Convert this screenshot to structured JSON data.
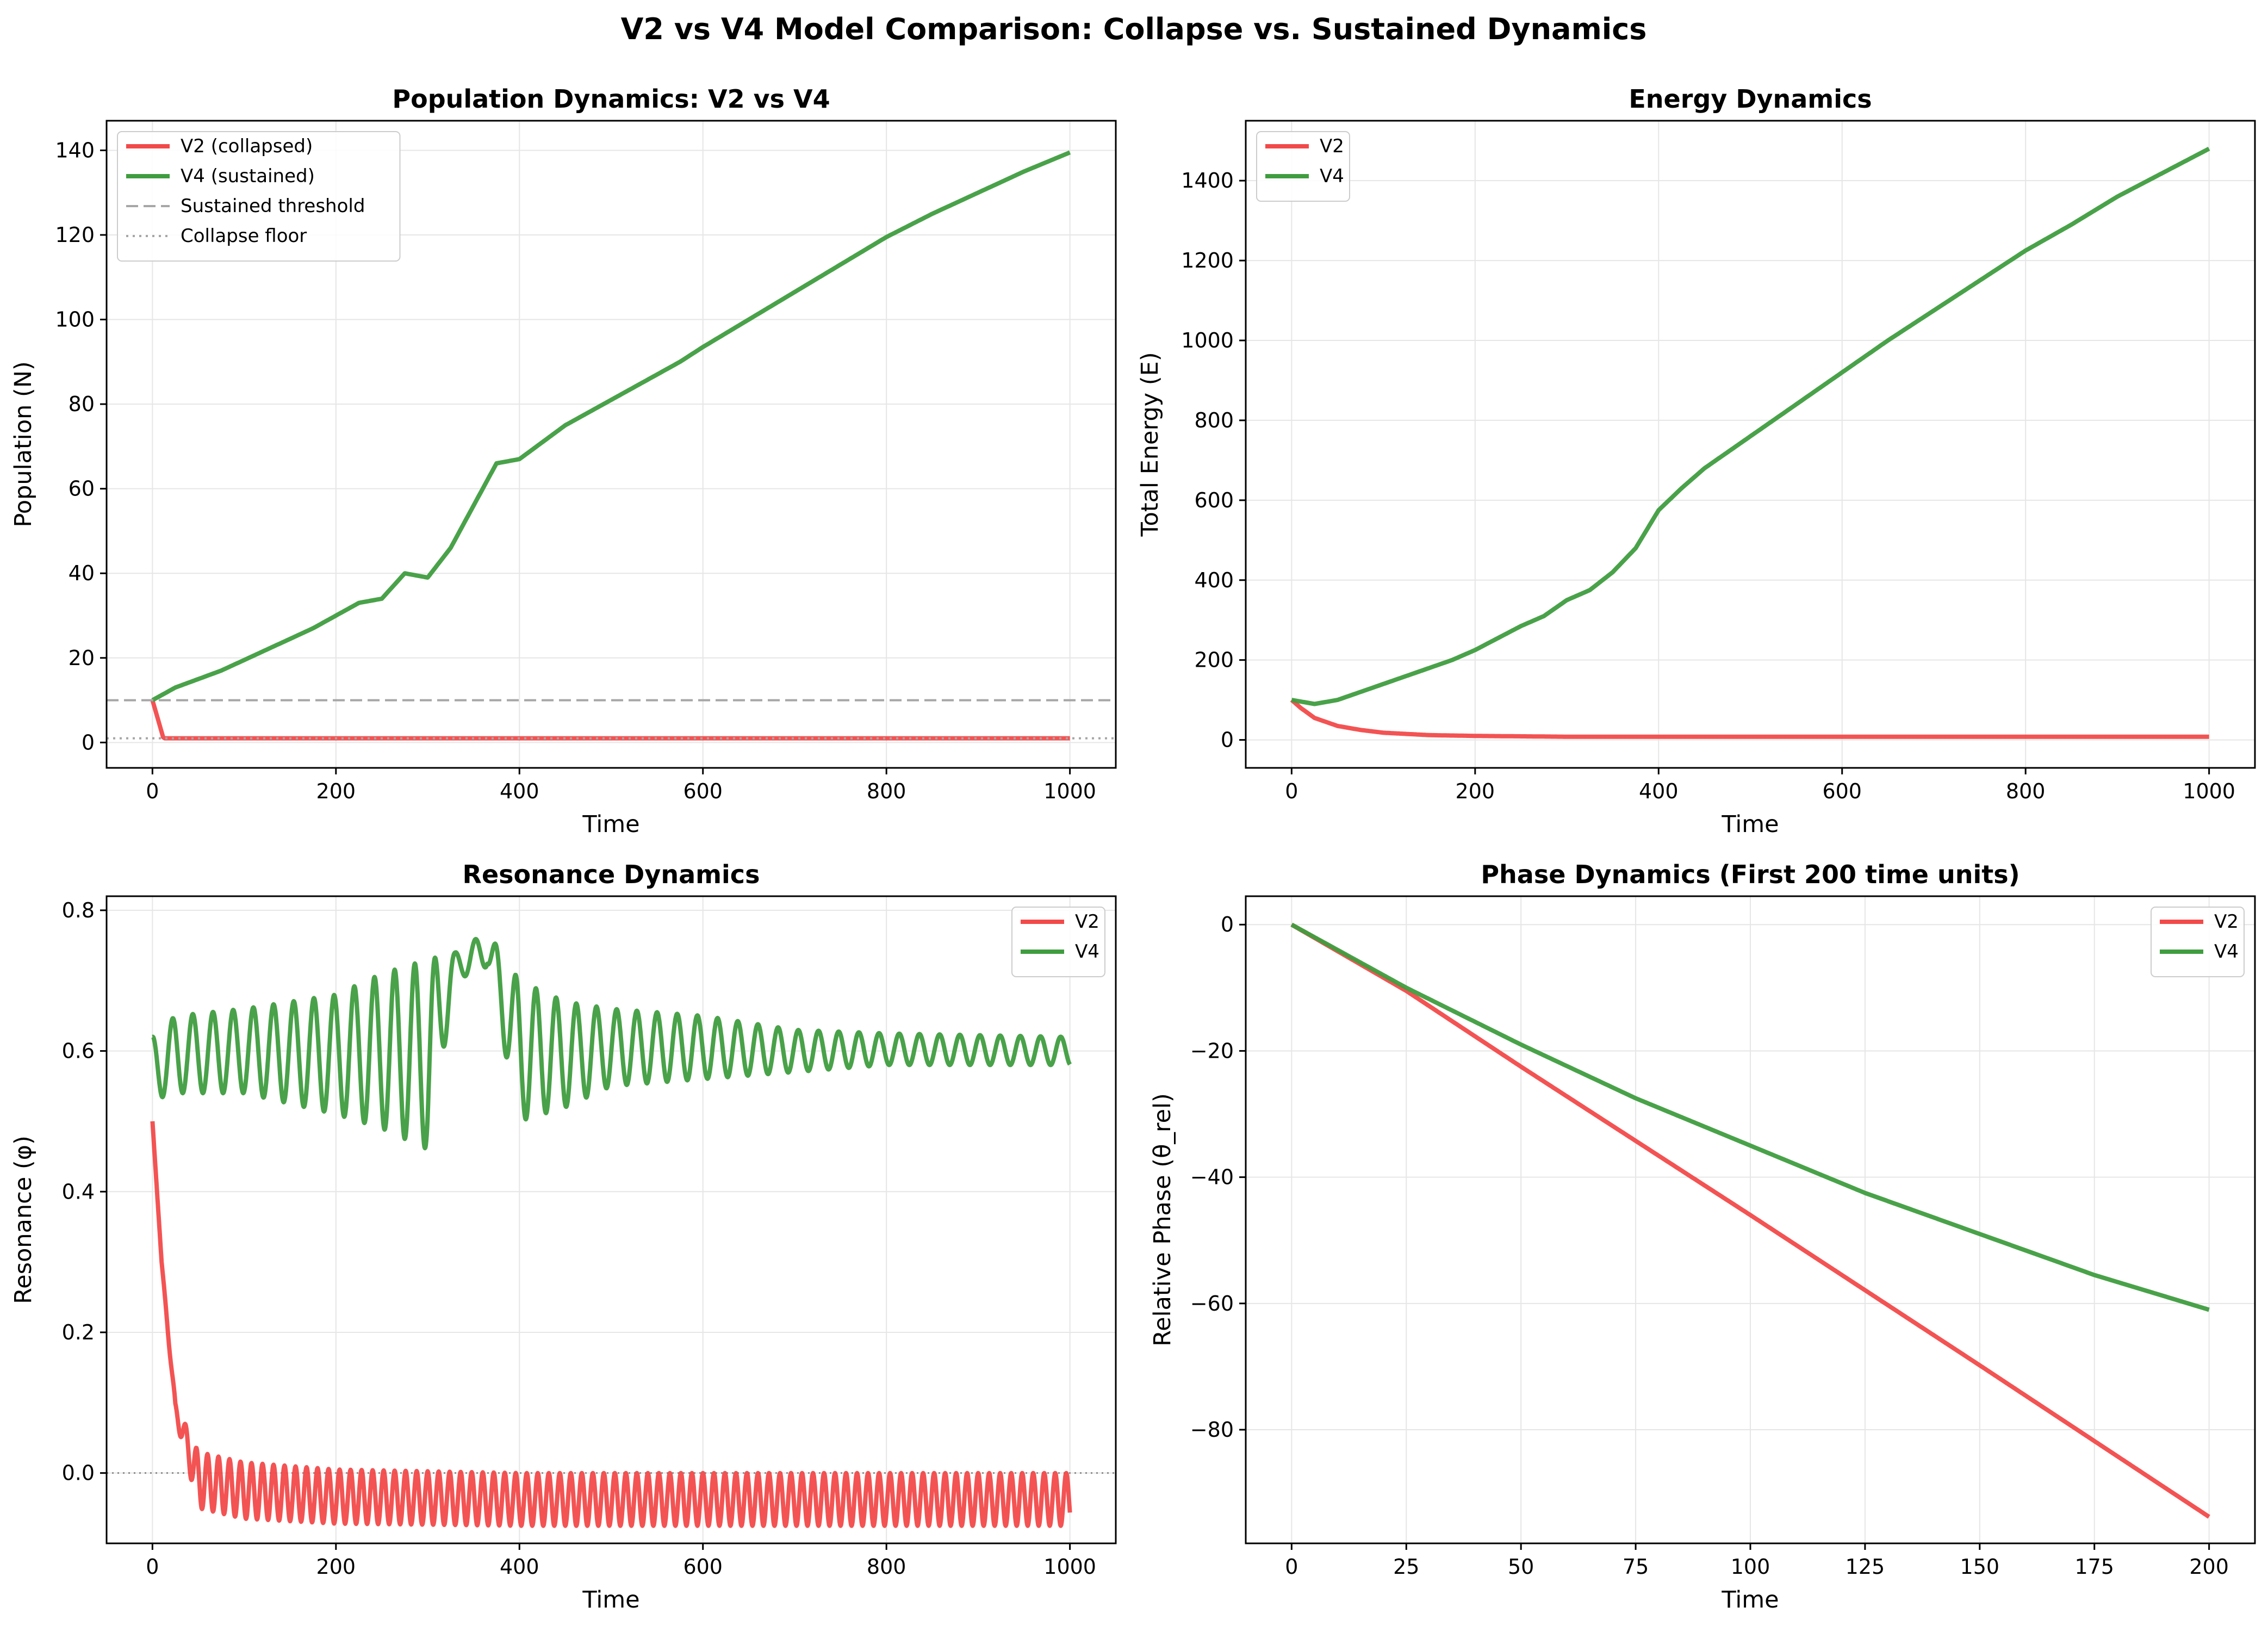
{
  "figure": {
    "title": "V2 vs V4 Model Comparison: Collapse vs. Sustained Dynamics"
  },
  "colors": {
    "v2": "#f24a4a",
    "v4": "#3f9d3f",
    "ref_line": "#a6a6a6",
    "grid": "#e6e6e6"
  },
  "chart_data": [
    {
      "type": "line",
      "title": "Population Dynamics: V2 vs V4",
      "xlabel": "Time",
      "ylabel": "Population (N)",
      "xlim": [
        -50,
        1050
      ],
      "ylim": [
        -6,
        147
      ],
      "xticks": [
        0,
        200,
        400,
        600,
        800,
        1000
      ],
      "yticks": [
        0,
        20,
        40,
        60,
        80,
        100,
        120,
        140
      ],
      "grid": true,
      "legend": "top-left",
      "series": [
        {
          "name": "V2 (collapsed)",
          "key": "v2",
          "x": [
            0,
            12,
            1000
          ],
          "y": [
            10,
            1,
            1
          ]
        },
        {
          "name": "V4 (sustained)",
          "key": "v4",
          "x": [
            0,
            25,
            50,
            75,
            100,
            125,
            150,
            175,
            200,
            225,
            250,
            275,
            300,
            325,
            350,
            375,
            400,
            425,
            450,
            475,
            500,
            525,
            550,
            575,
            600,
            650,
            700,
            750,
            800,
            850,
            900,
            950,
            1000
          ],
          "y": [
            10,
            13,
            15,
            17,
            19.5,
            22,
            24.5,
            27,
            30,
            33,
            34,
            40,
            39,
            46,
            56,
            66,
            67,
            71,
            75,
            78,
            81,
            84,
            87,
            90,
            93.5,
            100,
            106.5,
            113,
            119.5,
            125,
            130,
            135,
            139.5
          ]
        },
        {
          "name": "Sustained threshold",
          "key": "threshold",
          "style": "dashed",
          "y_const": 10
        },
        {
          "name": "Collapse floor",
          "key": "floor",
          "style": "dotted",
          "y_const": 1
        }
      ]
    },
    {
      "type": "line",
      "title": "Energy Dynamics",
      "xlabel": "Time",
      "ylabel": "Total Energy (E)",
      "xlim": [
        -50,
        1050
      ],
      "ylim": [
        -70,
        1550
      ],
      "xticks": [
        0,
        200,
        400,
        600,
        800,
        1000
      ],
      "yticks": [
        0,
        200,
        400,
        600,
        800,
        1000,
        1200,
        1400
      ],
      "grid": true,
      "legend": "top-left",
      "series": [
        {
          "name": "V2",
          "key": "v2",
          "x": [
            0,
            10,
            25,
            50,
            75,
            100,
            150,
            200,
            300,
            400,
            600,
            800,
            1000
          ],
          "y": [
            100,
            80,
            55,
            35,
            25,
            18,
            12,
            10,
            8,
            8,
            8,
            8,
            8
          ]
        },
        {
          "name": "V4",
          "key": "v4",
          "x": [
            0,
            25,
            50,
            75,
            100,
            125,
            150,
            175,
            200,
            225,
            250,
            275,
            300,
            325,
            350,
            375,
            400,
            425,
            450,
            475,
            500,
            550,
            600,
            650,
            700,
            750,
            800,
            850,
            900,
            950,
            1000
          ],
          "y": [
            100,
            90,
            100,
            120,
            140,
            160,
            180,
            200,
            225,
            255,
            285,
            310,
            350,
            375,
            420,
            480,
            575,
            630,
            680,
            720,
            760,
            840,
            920,
            1000,
            1075,
            1150,
            1225,
            1290,
            1360,
            1420,
            1480
          ]
        }
      ]
    },
    {
      "type": "line",
      "title": "Resonance Dynamics",
      "xlabel": "Time",
      "ylabel": "Resonance (φ)",
      "xlim": [
        -50,
        1050
      ],
      "ylim": [
        -0.1,
        0.82
      ],
      "xticks": [
        0,
        200,
        400,
        600,
        800,
        1000
      ],
      "yticks": [
        0.0,
        0.2,
        0.4,
        0.6,
        0.8
      ],
      "grid": true,
      "legend": "top-right",
      "reference_line": 0.0,
      "series": [
        {
          "name": "V2",
          "key": "v2",
          "envelope": {
            "x": [
              0,
              10,
              25,
              50,
              100,
              200,
              400,
              600,
              800,
              1000
            ],
            "upper": [
              0.5,
              0.3,
              0.1,
              0.03,
              0.015,
              0.005,
              0.0,
              0.0,
              0.0,
              0.0
            ],
            "lower": [
              0.5,
              0.3,
              0.08,
              -0.05,
              -0.065,
              -0.072,
              -0.075,
              -0.075,
              -0.075,
              -0.075
            ],
            "period": 12
          }
        },
        {
          "name": "V4",
          "key": "v4",
          "envelope": {
            "x": [
              0,
              25,
              100,
              200,
              250,
              300,
              330,
              365,
              400,
              450,
              500,
              600,
              700,
              800,
              1000
            ],
            "upper": [
              0.62,
              0.65,
              0.66,
              0.68,
              0.71,
              0.73,
              0.74,
              0.77,
              0.7,
              0.67,
              0.66,
              0.65,
              0.63,
              0.625,
              0.62
            ],
            "lower": [
              0.53,
              0.54,
              0.54,
              0.51,
              0.49,
              0.46,
              0.7,
              0.72,
              0.5,
              0.52,
              0.55,
              0.56,
              0.57,
              0.58,
              0.58
            ],
            "period": 22
          }
        }
      ]
    },
    {
      "type": "line",
      "title": "Phase Dynamics (First 200 time units)",
      "xlabel": "Time",
      "ylabel": "Relative Phase (θ_rel)",
      "xlim": [
        -10,
        210
      ],
      "ylim": [
        -98,
        4.5
      ],
      "xticks": [
        0,
        25,
        50,
        75,
        100,
        125,
        150,
        175,
        200
      ],
      "yticks": [
        0,
        -20,
        -40,
        -60,
        -80
      ],
      "grid": true,
      "legend": "top-right",
      "series": [
        {
          "name": "V2",
          "key": "v2",
          "x": [
            0,
            25,
            50,
            100,
            150,
            200
          ],
          "y": [
            0,
            -10.5,
            -22.5,
            -46,
            -69.8,
            -93.8
          ]
        },
        {
          "name": "V4",
          "key": "v4",
          "x": [
            0,
            25,
            50,
            75,
            100,
            125,
            150,
            175,
            200
          ],
          "y": [
            0,
            -10,
            -19,
            -27.5,
            -35,
            -42.5,
            -49,
            -55.5,
            -61
          ]
        }
      ]
    }
  ]
}
